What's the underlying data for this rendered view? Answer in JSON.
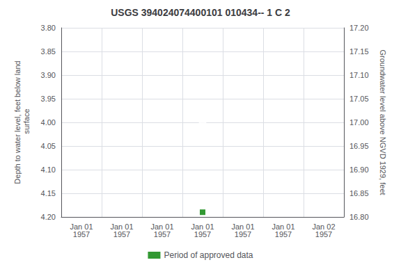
{
  "chart_data": {
    "type": "scatter",
    "title": "USGS 394024074400101 010434-- 1 C 2",
    "ylabel": "Depth to water level, feet below land\n surface",
    "y2label": "Groundwater level above NGVD 1929, feet",
    "categories": [
      "Jan 01\n1957",
      "Jan 01\n1957",
      "Jan 01\n1957",
      "Jan 01\n1957",
      "Jan 01\n1957",
      "Jan 01\n1957",
      "Jan 02\n1957"
    ],
    "series": [
      {
        "color": "#0000cc",
        "marker": "hollow_circle",
        "values": [
          null,
          null,
          null,
          4.0,
          null,
          null,
          null
        ]
      },
      {
        "name": "Period of approved data",
        "color": "#008000",
        "marker": "square",
        "values": [
          null,
          null,
          null,
          4.19,
          null,
          null,
          null
        ]
      }
    ],
    "ylim": [
      4.2,
      3.8
    ],
    "yticks": [
      {
        "value": 3.8,
        "label": "3.80"
      },
      {
        "value": 3.85,
        "label": "3.85"
      },
      {
        "value": 3.9,
        "label": "3.90"
      },
      {
        "value": 3.95,
        "label": "3.95"
      },
      {
        "value": 4.0,
        "label": "4.00"
      },
      {
        "value": 4.05,
        "label": "4.05"
      },
      {
        "value": 4.1,
        "label": "4.10"
      },
      {
        "value": 4.15,
        "label": "4.15"
      },
      {
        "value": 4.2,
        "label": "4.20"
      }
    ],
    "y2lim": [
      16.8,
      17.2
    ],
    "y2ticks": [
      {
        "value": 17.2,
        "label": "17.20"
      },
      {
        "value": 17.15,
        "label": "17.15"
      },
      {
        "value": 17.1,
        "label": "17.10"
      },
      {
        "value": 17.05,
        "label": "17.05"
      },
      {
        "value": 17.0,
        "label": "17.00"
      },
      {
        "value": 16.95,
        "label": "16.95"
      },
      {
        "value": 16.9,
        "label": "16.90"
      },
      {
        "value": 16.85,
        "label": "16.85"
      },
      {
        "value": 16.8,
        "label": "16.80"
      }
    ],
    "grid": true,
    "legend": "bottom"
  }
}
